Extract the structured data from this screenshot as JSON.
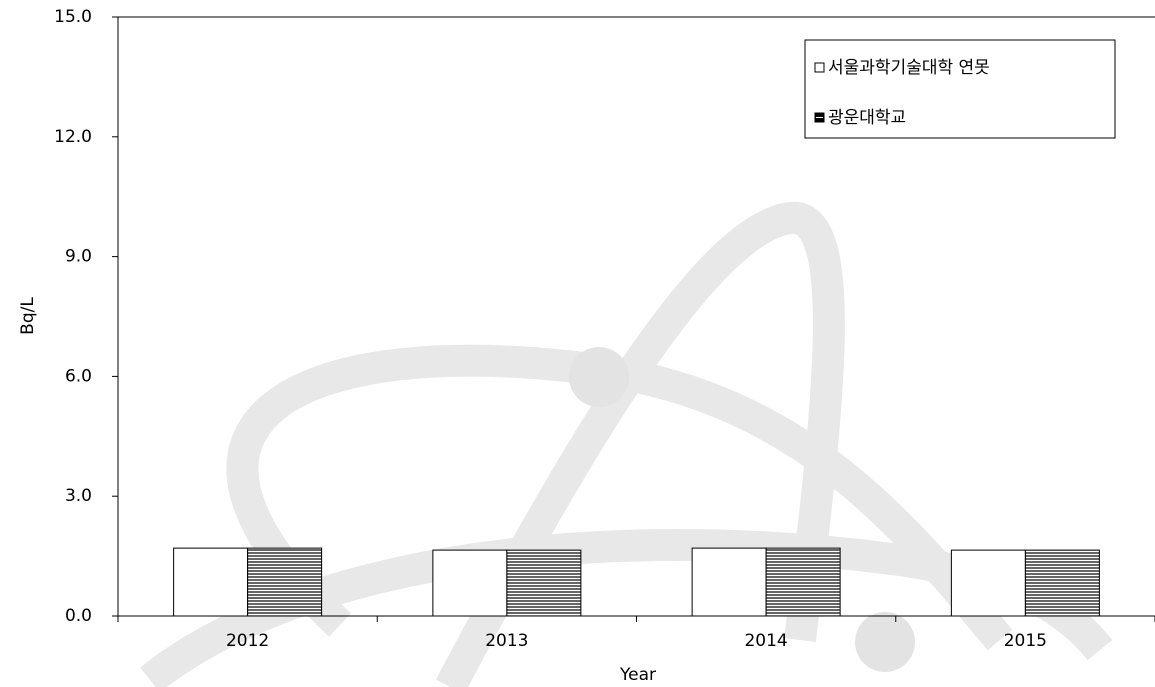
{
  "chart_data": {
    "type": "bar",
    "y_label": "Bq/L",
    "x_label": "Year",
    "categories": [
      "2012",
      "2013",
      "2014",
      "2015"
    ],
    "series": [
      {
        "name": "서울과학기술대학 연못",
        "color": "#ffffff",
        "values": [
          1.7,
          1.65,
          1.7,
          1.65
        ]
      },
      {
        "name": "광운대학교",
        "color": "hatch",
        "values": [
          1.7,
          1.65,
          1.7,
          1.65
        ]
      }
    ],
    "ylim": [
      0,
      15
    ],
    "yticks": [
      {
        "value": 0,
        "label": "0.0"
      },
      {
        "value": 3,
        "label": "3.0"
      },
      {
        "value": 6,
        "label": "6.0"
      },
      {
        "value": 9,
        "label": "9.0"
      },
      {
        "value": 12,
        "label": "12.0"
      },
      {
        "value": 15,
        "label": "15.0"
      }
    ],
    "legend": "top-right"
  }
}
